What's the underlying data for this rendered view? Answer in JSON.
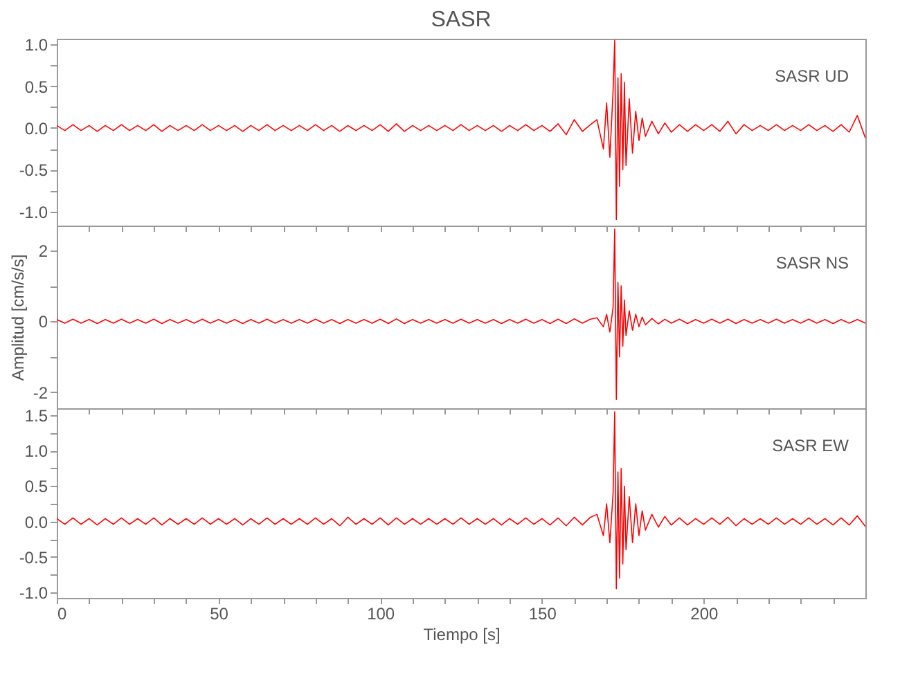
{
  "chart_data": [
    {
      "type": "line",
      "title": "SASR",
      "annotations": [
        "SASR UD"
      ],
      "color": "#ff0000",
      "tick_labels": "y",
      "x": [
        0,
        2.5,
        5,
        7.5,
        10,
        12.5,
        15,
        17.5,
        20,
        22.5,
        25,
        27.5,
        30,
        32.5,
        35,
        37.5,
        40,
        42.5,
        45,
        47.5,
        50,
        52.5,
        55,
        57.5,
        60,
        62.5,
        65,
        67.5,
        70,
        72.5,
        75,
        77.5,
        80,
        82.5,
        85,
        87.5,
        90,
        92.5,
        95,
        97.5,
        100,
        102.5,
        105,
        107.5,
        110,
        112.5,
        115,
        117.5,
        120,
        122.5,
        125,
        127.5,
        130,
        132.5,
        135,
        137.5,
        140,
        142.5,
        145,
        147.5,
        150,
        152.5,
        155,
        157.5,
        160,
        162.5,
        165,
        167,
        169,
        170,
        171,
        172,
        172.5,
        173,
        173.5,
        174,
        174.5,
        175,
        175.5,
        176,
        177,
        178,
        179,
        180,
        181,
        182,
        184,
        186,
        188,
        190,
        192.5,
        195,
        197.5,
        200,
        202.5,
        205,
        207.5,
        210,
        212.5,
        215,
        217.5,
        220,
        222.5,
        225,
        227.5,
        230,
        232.5,
        235,
        237.5,
        240,
        242.5,
        245,
        247.5,
        250
      ],
      "values": [
        0.03,
        -0.03,
        0.04,
        -0.03,
        0.03,
        -0.04,
        0.03,
        -0.03,
        0.04,
        -0.03,
        0.03,
        -0.03,
        0.04,
        -0.04,
        0.03,
        -0.03,
        0.03,
        -0.03,
        0.04,
        -0.03,
        0.03,
        -0.03,
        0.03,
        -0.04,
        0.03,
        -0.03,
        0.04,
        -0.03,
        0.03,
        -0.03,
        0.03,
        -0.03,
        0.04,
        -0.03,
        0.03,
        -0.04,
        0.03,
        -0.03,
        0.03,
        -0.03,
        0.04,
        -0.04,
        0.05,
        -0.04,
        0.03,
        -0.03,
        0.03,
        -0.03,
        0.03,
        -0.03,
        0.04,
        -0.03,
        0.03,
        -0.03,
        0.03,
        -0.04,
        0.03,
        -0.03,
        0.04,
        -0.03,
        0.03,
        -0.04,
        0.05,
        -0.08,
        0.1,
        -0.04,
        0.04,
        0.1,
        -0.25,
        0.3,
        -0.35,
        0.45,
        1.05,
        -1.1,
        0.6,
        -0.7,
        0.65,
        -0.5,
        0.55,
        -0.45,
        0.35,
        -0.3,
        0.2,
        -0.15,
        0.12,
        -0.1,
        0.08,
        -0.07,
        0.06,
        -0.05,
        0.04,
        -0.04,
        0.04,
        -0.03,
        0.04,
        -0.04,
        0.08,
        -0.07,
        0.04,
        -0.03,
        0.03,
        -0.03,
        0.04,
        -0.03,
        0.03,
        -0.03,
        0.04,
        -0.03,
        0.03,
        -0.04,
        0.04,
        -0.05,
        0.15,
        -0.12
      ],
      "xlim": [
        0,
        250
      ],
      "xticks": [
        0,
        {
          "value": 10,
          "label": null
        },
        {
          "value": 20,
          "label": null
        },
        {
          "value": 30,
          "label": null
        },
        {
          "value": 40,
          "label": null
        },
        50,
        {
          "value": 60,
          "label": null
        },
        {
          "value": 70,
          "label": null
        },
        {
          "value": 80,
          "label": null
        },
        {
          "value": 90,
          "label": null
        },
        100,
        {
          "value": 110,
          "label": null
        },
        {
          "value": 120,
          "label": null
        },
        {
          "value": 130,
          "label": null
        },
        {
          "value": 140,
          "label": null
        },
        150,
        {
          "value": 160,
          "label": null
        },
        {
          "value": 170,
          "label": null
        },
        {
          "value": 180,
          "label": null
        },
        {
          "value": 190,
          "label": null
        },
        200,
        {
          "value": 210,
          "label": null
        },
        {
          "value": 220,
          "label": null
        },
        {
          "value": 230,
          "label": null
        },
        {
          "value": 240,
          "label": null
        }
      ],
      "ylim": [
        -1.17,
        1.07
      ],
      "yticks": [
        {
          "value": -1,
          "label": "-1.0"
        },
        {
          "value": -0.75,
          "label": null
        },
        {
          "value": -0.5,
          "label": "-0.5"
        },
        {
          "value": -0.25,
          "label": null
        },
        {
          "value": 0,
          "label": "0.0"
        },
        {
          "value": 0.25,
          "label": null
        },
        {
          "value": 0.5,
          "label": "0.5"
        },
        {
          "value": 0.75,
          "label": null
        },
        {
          "value": 1,
          "label": "1.0"
        }
      ]
    },
    {
      "type": "line",
      "annotations": [
        "SASR NS"
      ],
      "color": "#ff0000",
      "tick_labels": "y",
      "ylabel": "Amplitud [cm/s/s]",
      "x": [
        0,
        2.5,
        5,
        7.5,
        10,
        12.5,
        15,
        17.5,
        20,
        22.5,
        25,
        27.5,
        30,
        32.5,
        35,
        37.5,
        40,
        42.5,
        45,
        47.5,
        50,
        52.5,
        55,
        57.5,
        60,
        62.5,
        65,
        67.5,
        70,
        72.5,
        75,
        77.5,
        80,
        82.5,
        85,
        87.5,
        90,
        92.5,
        95,
        97.5,
        100,
        102.5,
        105,
        107.5,
        110,
        112.5,
        115,
        117.5,
        120,
        122.5,
        125,
        127.5,
        130,
        132.5,
        135,
        137.5,
        140,
        142.5,
        145,
        147.5,
        150,
        152.5,
        155,
        157.5,
        160,
        162.5,
        165,
        167,
        169,
        170,
        171,
        172,
        172.5,
        173,
        173.5,
        174,
        174.5,
        175,
        175.5,
        176,
        177,
        178,
        179,
        180,
        181,
        182,
        184,
        186,
        188,
        190,
        192.5,
        195,
        197.5,
        200,
        202.5,
        205,
        207.5,
        210,
        212.5,
        215,
        217.5,
        220,
        222.5,
        225,
        227.5,
        230,
        232.5,
        235,
        237.5,
        240,
        242.5,
        245,
        247.5,
        250
      ],
      "values": [
        0.05,
        -0.05,
        0.06,
        -0.05,
        0.05,
        -0.06,
        0.05,
        -0.05,
        0.06,
        -0.05,
        0.05,
        -0.05,
        0.06,
        -0.06,
        0.05,
        -0.05,
        0.05,
        -0.05,
        0.06,
        -0.05,
        0.05,
        -0.05,
        0.05,
        -0.06,
        0.05,
        -0.05,
        0.06,
        -0.05,
        0.05,
        -0.05,
        0.05,
        -0.05,
        0.06,
        -0.05,
        0.05,
        -0.06,
        0.05,
        -0.05,
        0.05,
        -0.05,
        0.06,
        -0.06,
        0.07,
        -0.06,
        0.05,
        -0.05,
        0.05,
        -0.05,
        0.05,
        -0.05,
        0.06,
        -0.05,
        0.05,
        -0.05,
        0.05,
        -0.06,
        0.05,
        -0.05,
        0.06,
        -0.05,
        0.05,
        -0.06,
        0.06,
        -0.06,
        0.07,
        -0.05,
        0.06,
        0.1,
        -0.15,
        0.2,
        -0.3,
        0.4,
        2.6,
        -2.2,
        1.1,
        -1.0,
        1.0,
        -0.7,
        0.6,
        -0.4,
        0.3,
        -0.25,
        0.2,
        -0.15,
        0.12,
        -0.1,
        0.08,
        -0.07,
        0.06,
        -0.05,
        0.06,
        -0.06,
        0.05,
        -0.05,
        0.06,
        -0.05,
        0.06,
        -0.06,
        0.05,
        -0.05,
        0.05,
        -0.05,
        0.06,
        -0.05,
        0.05,
        -0.05,
        0.06,
        -0.05,
        0.05,
        -0.06,
        0.05,
        -0.05,
        0.05,
        -0.05
      ],
      "xlim": [
        0,
        250
      ],
      "xticks": [
        0,
        {
          "value": 10,
          "label": null
        },
        {
          "value": 20,
          "label": null
        },
        {
          "value": 30,
          "label": null
        },
        {
          "value": 40,
          "label": null
        },
        50,
        {
          "value": 60,
          "label": null
        },
        {
          "value": 70,
          "label": null
        },
        {
          "value": 80,
          "label": null
        },
        {
          "value": 90,
          "label": null
        },
        100,
        {
          "value": 110,
          "label": null
        },
        {
          "value": 120,
          "label": null
        },
        {
          "value": 130,
          "label": null
        },
        {
          "value": 140,
          "label": null
        },
        150,
        {
          "value": 160,
          "label": null
        },
        {
          "value": 170,
          "label": null
        },
        {
          "value": 180,
          "label": null
        },
        {
          "value": 190,
          "label": null
        },
        200,
        {
          "value": 210,
          "label": null
        },
        {
          "value": 220,
          "label": null
        },
        {
          "value": 230,
          "label": null
        },
        {
          "value": 240,
          "label": null
        }
      ],
      "ylim": [
        -2.45,
        2.7
      ],
      "yticks": [
        -2,
        {
          "value": -1,
          "label": null
        },
        0,
        {
          "value": 1,
          "label": null
        },
        2
      ]
    },
    {
      "type": "line",
      "annotations": [
        "SASR EW"
      ],
      "color": "#ff0000",
      "xlabel": "Tiempo [s]",
      "x": [
        0,
        2.5,
        5,
        7.5,
        10,
        12.5,
        15,
        17.5,
        20,
        22.5,
        25,
        27.5,
        30,
        32.5,
        35,
        37.5,
        40,
        42.5,
        45,
        47.5,
        50,
        52.5,
        55,
        57.5,
        60,
        62.5,
        65,
        67.5,
        70,
        72.5,
        75,
        77.5,
        80,
        82.5,
        85,
        87.5,
        90,
        92.5,
        95,
        97.5,
        100,
        102.5,
        105,
        107.5,
        110,
        112.5,
        115,
        117.5,
        120,
        122.5,
        125,
        127.5,
        130,
        132.5,
        135,
        137.5,
        140,
        142.5,
        145,
        147.5,
        150,
        152.5,
        155,
        157.5,
        160,
        162.5,
        165,
        167,
        169,
        170,
        171,
        172,
        172.5,
        173,
        173.5,
        174,
        174.5,
        175,
        175.5,
        176,
        177,
        178,
        179,
        180,
        181,
        182,
        184,
        186,
        188,
        190,
        192.5,
        195,
        197.5,
        200,
        202.5,
        205,
        207.5,
        210,
        212.5,
        215,
        217.5,
        220,
        222.5,
        225,
        227.5,
        230,
        232.5,
        235,
        237.5,
        240,
        242.5,
        245,
        247.5,
        250
      ],
      "values": [
        0.04,
        -0.04,
        0.05,
        -0.04,
        0.04,
        -0.05,
        0.04,
        -0.04,
        0.05,
        -0.04,
        0.04,
        -0.04,
        0.05,
        -0.05,
        0.04,
        -0.04,
        0.04,
        -0.04,
        0.05,
        -0.04,
        0.04,
        -0.04,
        0.04,
        -0.05,
        0.04,
        -0.04,
        0.05,
        -0.04,
        0.04,
        -0.04,
        0.04,
        -0.04,
        0.05,
        -0.04,
        0.04,
        -0.06,
        0.06,
        -0.04,
        0.04,
        -0.04,
        0.05,
        -0.05,
        0.05,
        -0.04,
        0.04,
        -0.04,
        0.04,
        -0.04,
        0.04,
        -0.04,
        0.05,
        -0.04,
        0.04,
        -0.04,
        0.04,
        -0.05,
        0.04,
        -0.04,
        0.05,
        -0.04,
        0.04,
        -0.05,
        0.05,
        -0.06,
        0.06,
        -0.05,
        0.06,
        0.1,
        -0.2,
        0.25,
        -0.3,
        0.4,
        1.55,
        -0.95,
        0.7,
        -0.8,
        0.75,
        -0.6,
        0.5,
        -0.4,
        0.35,
        -0.3,
        0.25,
        -0.2,
        0.15,
        -0.12,
        0.1,
        -0.08,
        0.07,
        -0.05,
        0.05,
        -0.05,
        0.04,
        -0.04,
        0.05,
        -0.04,
        0.06,
        -0.06,
        0.04,
        -0.04,
        0.04,
        -0.04,
        0.05,
        -0.04,
        0.04,
        -0.04,
        0.05,
        -0.04,
        0.04,
        -0.05,
        0.05,
        -0.05,
        0.08,
        -0.07
      ],
      "xlim": [
        0,
        250
      ],
      "xticks": [
        0,
        {
          "value": 10,
          "label": null
        },
        {
          "value": 20,
          "label": null
        },
        {
          "value": 30,
          "label": null
        },
        {
          "value": 40,
          "label": null
        },
        50,
        {
          "value": 60,
          "label": null
        },
        {
          "value": 70,
          "label": null
        },
        {
          "value": 80,
          "label": null
        },
        {
          "value": 90,
          "label": null
        },
        100,
        {
          "value": 110,
          "label": null
        },
        {
          "value": 120,
          "label": null
        },
        {
          "value": 130,
          "label": null
        },
        {
          "value": 140,
          "label": null
        },
        150,
        {
          "value": 160,
          "label": null
        },
        {
          "value": 170,
          "label": null
        },
        {
          "value": 180,
          "label": null
        },
        {
          "value": 190,
          "label": null
        },
        200,
        {
          "value": 210,
          "label": null
        },
        {
          "value": 220,
          "label": null
        },
        {
          "value": 230,
          "label": null
        },
        {
          "value": 240,
          "label": null
        }
      ],
      "ylim": [
        -1.08,
        1.6
      ],
      "yticks": [
        {
          "value": -1,
          "label": "-1.0"
        },
        {
          "value": -0.75,
          "label": null
        },
        {
          "value": -0.5,
          "label": "-0.5"
        },
        {
          "value": -0.25,
          "label": null
        },
        {
          "value": 0,
          "label": "0.0"
        },
        {
          "value": 0.25,
          "label": null
        },
        {
          "value": 0.5,
          "label": "0.5"
        },
        {
          "value": 0.75,
          "label": null
        },
        {
          "value": 1,
          "label": "1.0"
        },
        {
          "value": 1.25,
          "label": null
        },
        {
          "value": 1.5,
          "label": "1.5"
        }
      ]
    }
  ]
}
